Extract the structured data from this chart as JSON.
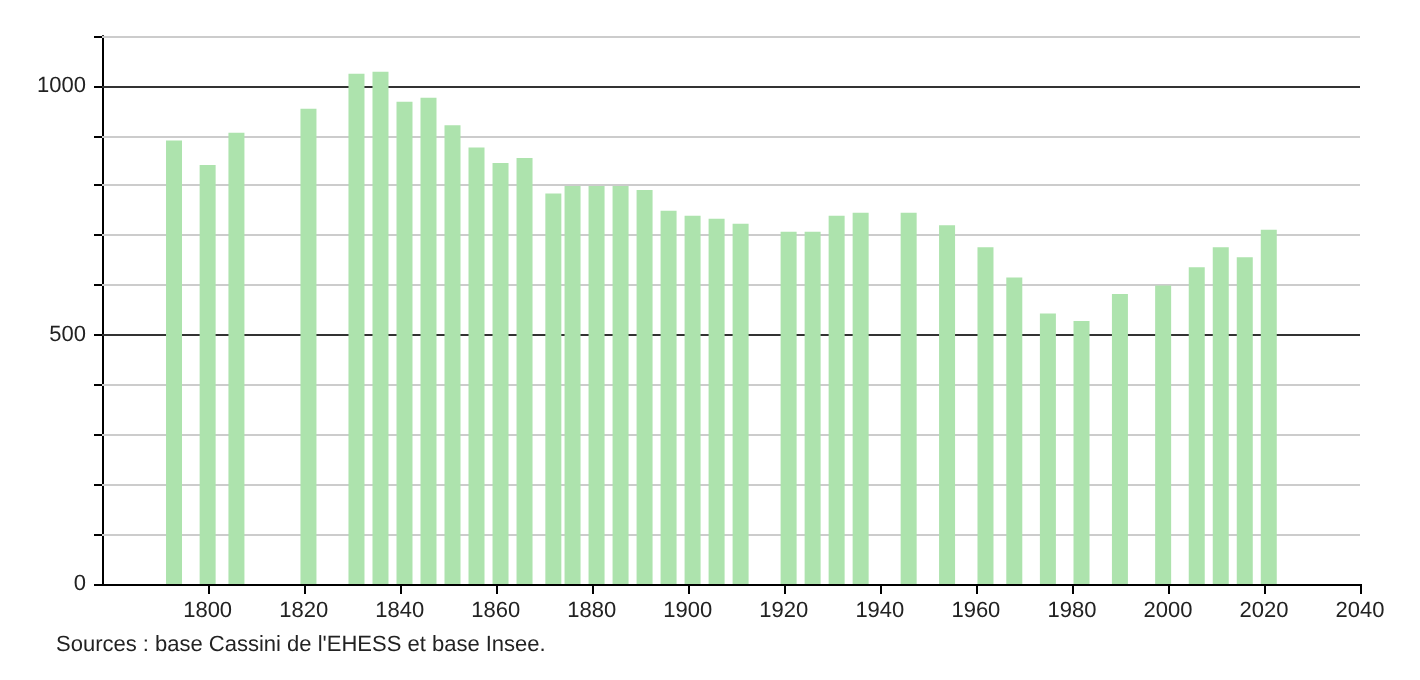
{
  "chart_data": {
    "type": "bar",
    "x": [
      1793,
      1800,
      1806,
      1821,
      1831,
      1836,
      1841,
      1846,
      1851,
      1856,
      1861,
      1866,
      1872,
      1876,
      1881,
      1886,
      1891,
      1896,
      1901,
      1906,
      1911,
      1921,
      1926,
      1931,
      1936,
      1946,
      1954,
      1962,
      1968,
      1975,
      1982,
      1990,
      1999,
      2006,
      2011,
      2016,
      2021
    ],
    "values": [
      890,
      841,
      906,
      954,
      1024,
      1028,
      968,
      976,
      921,
      876,
      845,
      855,
      784,
      799,
      799,
      799,
      791,
      749,
      739,
      733,
      723,
      707,
      707,
      739,
      745,
      745,
      720,
      676,
      615,
      543,
      528,
      582,
      599,
      636,
      676,
      656,
      711
    ],
    "color": "#ade3ad",
    "xlim": [
      1778,
      2040
    ],
    "xticks": [
      1800,
      1820,
      1840,
      1860,
      1880,
      1900,
      1920,
      1940,
      1960,
      1980,
      2000,
      2020,
      2040
    ],
    "ylim": [
      0,
      1100
    ],
    "yticks": [
      0,
      {
        "value": 100,
        "label": null
      },
      {
        "value": 200,
        "label": null
      },
      {
        "value": 300,
        "label": null
      },
      {
        "value": 400,
        "label": null
      },
      500,
      {
        "value": 600,
        "label": null
      },
      {
        "value": 700,
        "label": null
      },
      {
        "value": 800,
        "label": null
      },
      {
        "value": 900,
        "label": null
      },
      1000,
      {
        "value": 1100,
        "label": null
      }
    ],
    "grid": "y",
    "annotations": [
      "Sources : base Cassini de l'EHESS et base Insee."
    ]
  }
}
